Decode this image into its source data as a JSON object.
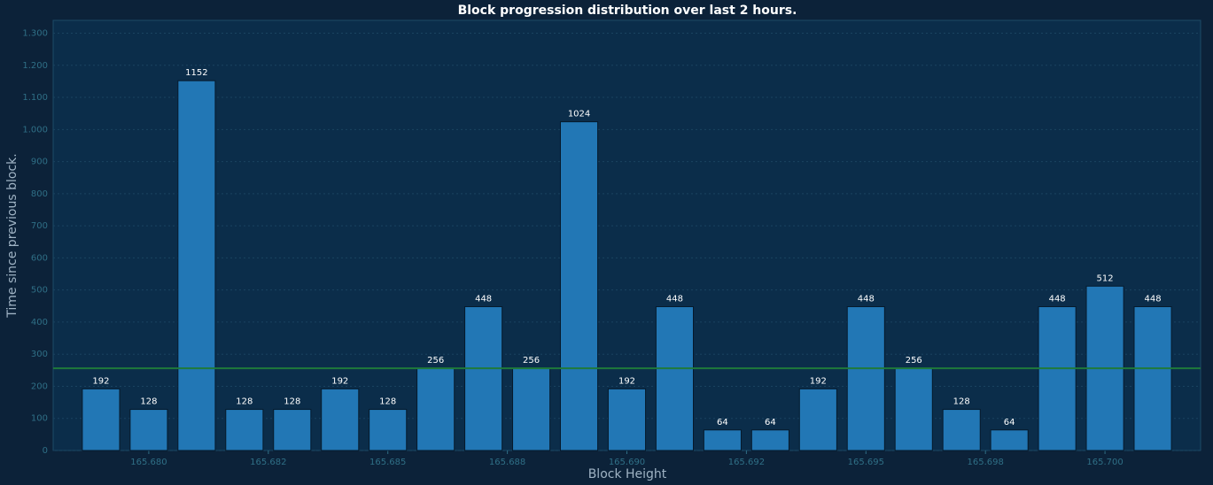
{
  "chart_data": {
    "type": "bar",
    "title": "Block progression distribution over last 2 hours.",
    "x_label": "Block Height",
    "y_label": "Time since previous block.",
    "x": [
      165679,
      165680,
      165681,
      165682,
      165683,
      165684,
      165685,
      165686,
      165687,
      165688,
      165689,
      165690,
      165691,
      165692,
      165693,
      165694,
      165695,
      165696,
      165697,
      165698,
      165699,
      165700,
      165701
    ],
    "values": [
      192,
      128,
      1152,
      128,
      128,
      192,
      128,
      256,
      448,
      256,
      1024,
      192,
      448,
      64,
      64,
      192,
      448,
      256,
      128,
      64,
      448,
      512,
      448
    ],
    "color": "#2277b5",
    "reference_value": 256,
    "reference_color": "#1f7a3a",
    "xlim": [
      165678,
      165702
    ],
    "xticks": [
      {
        "value": 165680,
        "label": "165.680"
      },
      {
        "value": 165682.5,
        "label": "165.682"
      },
      {
        "value": 165685,
        "label": "165.685"
      },
      {
        "value": 165687.5,
        "label": "165.688"
      },
      {
        "value": 165690,
        "label": "165.690"
      },
      {
        "value": 165692.5,
        "label": "165.692"
      },
      {
        "value": 165695,
        "label": "165.695"
      },
      {
        "value": 165697.5,
        "label": "165.698"
      },
      {
        "value": 165700,
        "label": "165.700"
      }
    ],
    "ylim": [
      0,
      1340
    ],
    "yticks": [
      0,
      100,
      200,
      300,
      400,
      500,
      600,
      700,
      800,
      900,
      {
        "value": 1000,
        "label": "1.000"
      },
      {
        "value": 1100,
        "label": "1.100"
      },
      {
        "value": 1200,
        "label": "1.200"
      },
      {
        "value": 1300,
        "label": "1.300"
      }
    ],
    "grid": true
  }
}
